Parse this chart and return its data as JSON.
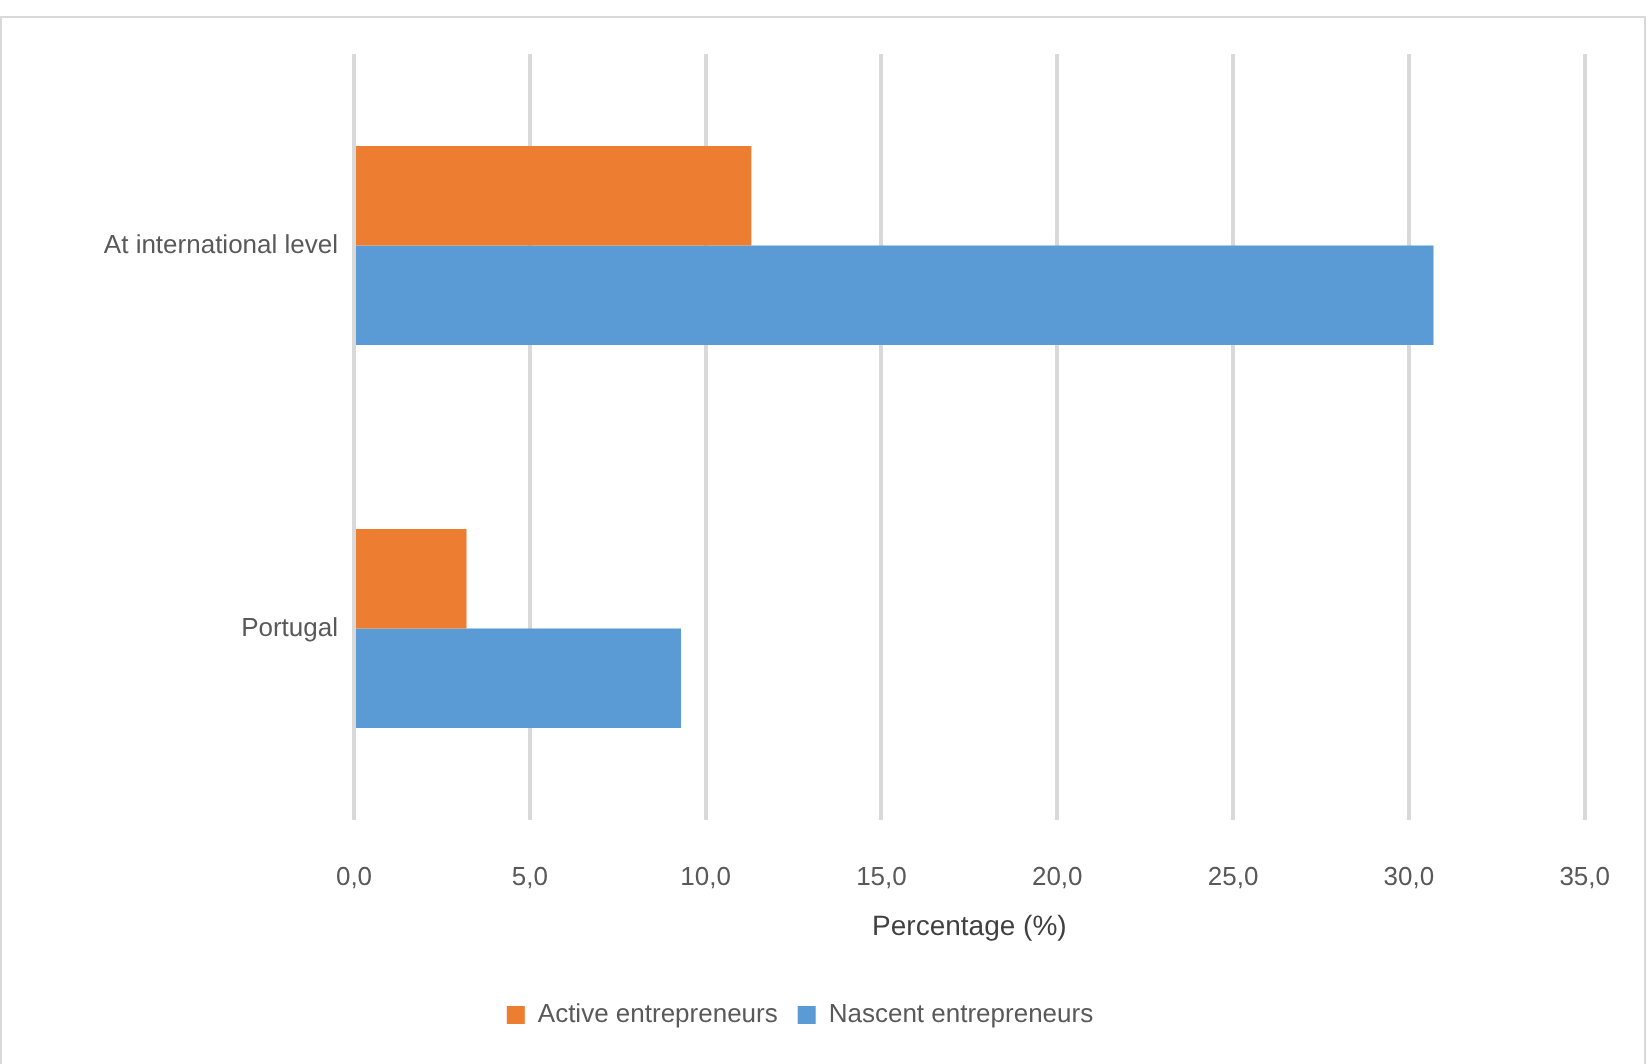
{
  "chart_data": {
    "type": "bar",
    "orientation": "horizontal",
    "categories": [
      "At international level",
      "Portugal"
    ],
    "series": [
      {
        "name": "Active entrepreneurs",
        "color": "#ed7d31",
        "values": [
          11.3,
          3.2
        ]
      },
      {
        "name": "Nascent entrepreneurs",
        "color": "#5b9bd5",
        "values": [
          30.7,
          9.3
        ]
      }
    ],
    "xlabel": "Percentage (%)",
    "xlim": [
      0,
      35
    ],
    "xticks": [
      {
        "value": 0,
        "label": "0,0"
      },
      {
        "value": 5,
        "label": "5,0"
      },
      {
        "value": 10,
        "label": "10,0"
      },
      {
        "value": 15,
        "label": "15,0"
      },
      {
        "value": 20,
        "label": "20,0"
      },
      {
        "value": 25,
        "label": "25,0"
      },
      {
        "value": 30,
        "label": "30,0"
      },
      {
        "value": 35,
        "label": "35,0"
      }
    ],
    "grid": "x",
    "legend": "bottom"
  }
}
